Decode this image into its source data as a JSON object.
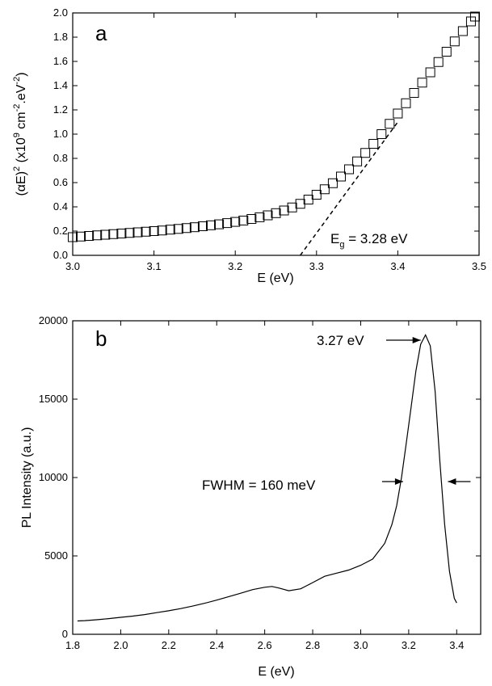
{
  "chart_data": [
    {
      "type": "scatter",
      "panel_label": "a",
      "xlabel": "E (eV)",
      "ylabel": {
        "prefix": "(αE)",
        "sup1": "2",
        "mid1": " (x10",
        "sup2": "9",
        "mid2": " cm",
        "sup3": "-2",
        "mid3": ".eV",
        "sup4": "-2",
        "suffix": ")"
      },
      "xlim": [
        3.0,
        3.5
      ],
      "ylim": [
        0.0,
        2.0
      ],
      "xticks": [
        3.0,
        3.1,
        3.2,
        3.3,
        3.4,
        3.5
      ],
      "xtick_labels": [
        "3.0",
        "3.1",
        "3.2",
        "3.3",
        "3.4",
        "3.5"
      ],
      "yticks": [
        0.0,
        0.2,
        0.4,
        0.6,
        0.8,
        1.0,
        1.2,
        1.4,
        1.6,
        1.8,
        2.0
      ],
      "ytick_labels": [
        "0.0",
        "0.2",
        "0.4",
        "0.6",
        "0.8",
        "1.0",
        "1.2",
        "1.4",
        "1.6",
        "1.8",
        "2.0"
      ],
      "marker": "open-square",
      "series": [
        {
          "x": [
            3.0,
            3.01,
            3.02,
            3.03,
            3.04,
            3.05,
            3.06,
            3.07,
            3.08,
            3.09,
            3.1,
            3.11,
            3.12,
            3.13,
            3.14,
            3.15,
            3.16,
            3.17,
            3.18,
            3.19,
            3.2,
            3.21,
            3.22,
            3.23,
            3.24,
            3.25,
            3.26,
            3.27,
            3.28,
            3.29,
            3.3,
            3.31,
            3.32,
            3.33,
            3.34,
            3.35,
            3.36,
            3.37,
            3.38,
            3.39,
            3.4,
            3.41,
            3.42,
            3.43,
            3.44,
            3.45,
            3.46,
            3.47,
            3.48,
            3.49,
            3.495
          ],
          "y": [
            0.15,
            0.155,
            0.16,
            0.165,
            0.17,
            0.175,
            0.18,
            0.185,
            0.19,
            0.195,
            0.2,
            0.205,
            0.212,
            0.218,
            0.225,
            0.232,
            0.24,
            0.248,
            0.256,
            0.266,
            0.276,
            0.287,
            0.3,
            0.314,
            0.33,
            0.348,
            0.37,
            0.395,
            0.425,
            0.46,
            0.5,
            0.545,
            0.595,
            0.65,
            0.71,
            0.775,
            0.845,
            0.92,
            1.0,
            1.085,
            1.17,
            1.255,
            1.34,
            1.425,
            1.51,
            1.595,
            1.68,
            1.765,
            1.85,
            1.93,
            1.97
          ]
        }
      ],
      "fit_line": {
        "x": [
          3.28,
          3.4
        ],
        "y": [
          0.0,
          1.1
        ]
      },
      "annotation": {
        "main": "E",
        "sub": "g",
        "rest": " = 3.28 eV"
      }
    },
    {
      "type": "line",
      "panel_label": "b",
      "xlabel": "E (eV)",
      "ylabel": "PL Intensity (a.u.)",
      "xlim": [
        1.8,
        3.5
      ],
      "ylim": [
        0,
        20000
      ],
      "xticks": [
        1.8,
        2.0,
        2.2,
        2.4,
        2.6,
        2.8,
        3.0,
        3.2,
        3.4
      ],
      "xtick_labels": [
        "1.8",
        "2.0",
        "2.2",
        "2.4",
        "2.6",
        "2.8",
        "3.0",
        "3.2",
        "3.4"
      ],
      "yticks": [
        0,
        5000,
        10000,
        15000,
        20000
      ],
      "ytick_labels": [
        "0",
        "5000",
        "10000",
        "15000",
        "20000"
      ],
      "series": [
        {
          "x": [
            1.82,
            1.85,
            1.9,
            1.95,
            2.0,
            2.05,
            2.1,
            2.15,
            2.2,
            2.25,
            2.3,
            2.35,
            2.4,
            2.45,
            2.5,
            2.55,
            2.6,
            2.63,
            2.66,
            2.7,
            2.75,
            2.8,
            2.85,
            2.9,
            2.95,
            3.0,
            3.05,
            3.1,
            3.13,
            3.15,
            3.17,
            3.19,
            3.21,
            3.23,
            3.25,
            3.27,
            3.29,
            3.31,
            3.33,
            3.35,
            3.37,
            3.39,
            3.4
          ],
          "y": [
            850,
            870,
            930,
            1000,
            1080,
            1160,
            1260,
            1380,
            1500,
            1640,
            1800,
            1980,
            2180,
            2400,
            2620,
            2850,
            3000,
            3050,
            2950,
            2780,
            2900,
            3300,
            3700,
            3900,
            4100,
            4400,
            4800,
            5800,
            7000,
            8200,
            10000,
            12200,
            14500,
            16800,
            18500,
            19100,
            18400,
            15500,
            11000,
            7000,
            4000,
            2300,
            2000
          ]
        }
      ],
      "annotations": {
        "peak": "3.27 eV",
        "fwhm": "FWHM = 160 meV"
      },
      "peak_x": 3.27,
      "peak_y": 19100,
      "fwhm_x": [
        3.19,
        3.35
      ],
      "fwhm_y": 10000
    }
  ]
}
